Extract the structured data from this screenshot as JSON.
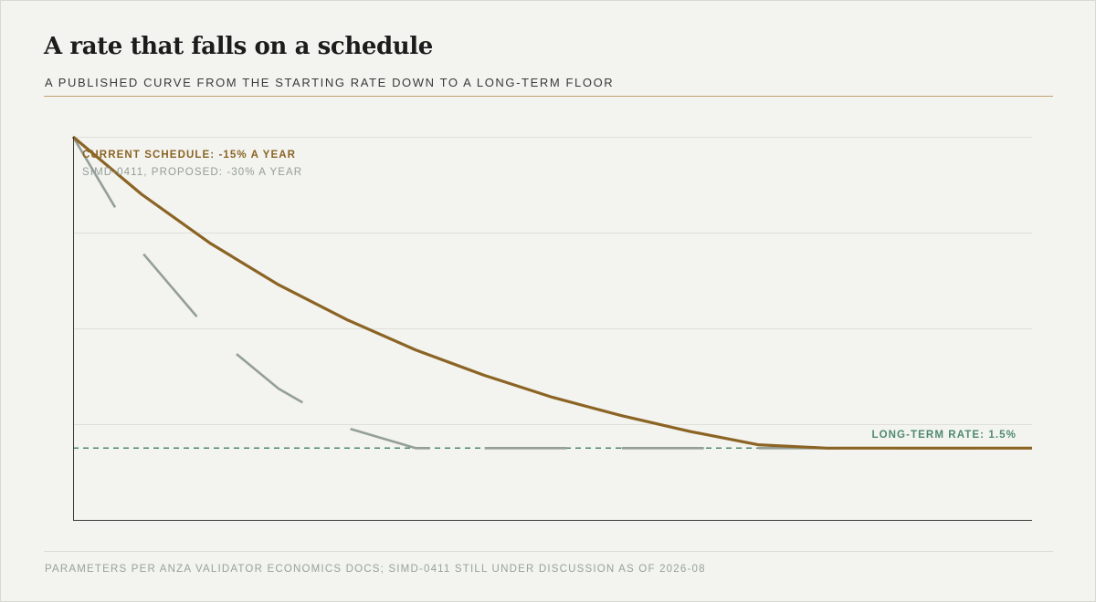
{
  "header": {
    "title": "A rate that falls on a schedule",
    "subtitle": "A PUBLISHED CURVE FROM THE STARTING RATE DOWN TO A LONG-TERM FLOOR"
  },
  "footer": {
    "source": "PARAMETERS PER ANZA VALIDATOR ECONOMICS DOCS; SIMD-0411 STILL UNDER DISCUSSION AS OF 2026-08"
  },
  "colors": {
    "current": "#8b6424",
    "proposed": "#949f98",
    "floor": "#4e8a72",
    "grid": "#e0e0da",
    "axis": "#3a3a3a"
  },
  "chart_data": {
    "type": "line",
    "xlim": [
      0,
      14
    ],
    "ylim": [
      0,
      8
    ],
    "grid_y": [
      2,
      4,
      6,
      8
    ],
    "series": [
      {
        "name": "CURRENT SCHEDULE: -15% A YEAR",
        "style": "solid",
        "x": [
          0,
          1,
          2,
          3,
          4,
          5,
          6,
          7,
          8,
          9,
          10,
          11,
          12,
          13,
          14
        ],
        "y": [
          8.0,
          6.8,
          5.78,
          4.91,
          4.18,
          3.55,
          3.02,
          2.56,
          2.18,
          1.85,
          1.57,
          1.5,
          1.5,
          1.5,
          1.5
        ]
      },
      {
        "name": "SIMD-0411, PROPOSED: -30% A YEAR",
        "style": "dashed",
        "x": [
          0,
          1,
          2,
          3,
          4,
          5,
          6,
          7,
          8,
          9,
          10,
          11,
          12,
          13,
          14
        ],
        "y": [
          8.0,
          5.6,
          3.92,
          2.74,
          1.92,
          1.5,
          1.5,
          1.5,
          1.5,
          1.5,
          1.5,
          1.5,
          1.5,
          1.5,
          1.5
        ]
      }
    ],
    "reference_lines": [
      {
        "label": "LONG-TERM RATE: 1.5%",
        "y": 1.5,
        "style": "dashed"
      }
    ]
  }
}
